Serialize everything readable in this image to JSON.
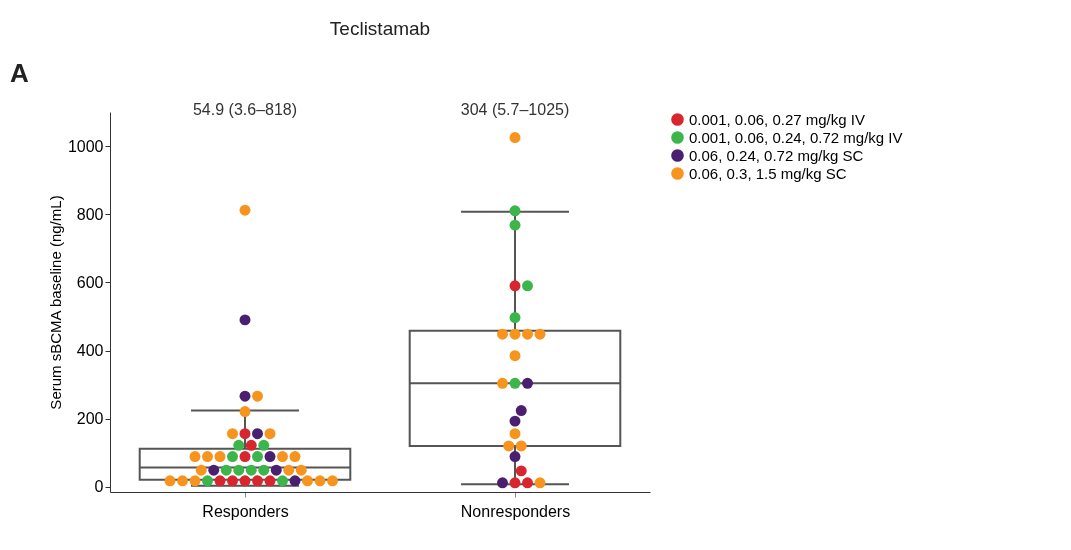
{
  "chart_data": {
    "type": "box",
    "title": "Teclistamab",
    "ylabel": "Serum sBCMA baseline (ng/mL)",
    "categories": [
      "Responders",
      "Nonresponders"
    ],
    "boxes": [
      {
        "low": 3.6,
        "q1": 21,
        "median": 57,
        "q3": 112,
        "high": 224
      },
      {
        "low": 8,
        "q1": 120,
        "median": 304,
        "q3": 458,
        "high": 807
      }
    ],
    "series": [
      {
        "type": "scatter",
        "name": "0.001, 0.06, 0.27 mg/kg IV",
        "color": "#d7262e",
        "x": [
          "Responders",
          "Responders",
          "Responders",
          "Responders",
          "Responders",
          "Responders",
          "Responders",
          "Responders",
          "Nonresponders",
          "Nonresponders",
          "Nonresponders",
          "Nonresponders"
        ],
        "values": [
          156,
          122,
          89,
          18,
          18,
          18,
          18,
          18,
          590,
          47,
          12,
          12
        ]
      },
      {
        "type": "scatter",
        "name": "0.001, 0.06, 0.24, 0.72 mg/kg IV",
        "color": "#3cb54a",
        "x": [
          "Responders",
          "Responders",
          "Responders",
          "Responders",
          "Responders",
          "Responders",
          "Responders",
          "Responders",
          "Responders",
          "Responders",
          "Nonresponders",
          "Nonresponders",
          "Nonresponders",
          "Nonresponders",
          "Nonresponders"
        ],
        "values": [
          122,
          122,
          89,
          89,
          49,
          49,
          49,
          49,
          18,
          18,
          810,
          768,
          590,
          497,
          304
        ]
      },
      {
        "type": "scatter",
        "name": "0.06, 0.24, 0.72 mg/kg SC",
        "color": "#4b1f6f",
        "x": [
          "Responders",
          "Responders",
          "Responders",
          "Responders",
          "Responders",
          "Responders",
          "Responders",
          "Nonresponders",
          "Nonresponders",
          "Nonresponders",
          "Nonresponders",
          "Nonresponders"
        ],
        "values": [
          490,
          266,
          156,
          89,
          49,
          49,
          18,
          304,
          224,
          193,
          89,
          12
        ]
      },
      {
        "type": "scatter",
        "name": "0.06, 0.3, 1.5 mg/kg SC",
        "color": "#f7941d",
        "x": [
          "Responders",
          "Responders",
          "Responders",
          "Responders",
          "Responders",
          "Responders",
          "Responders",
          "Responders",
          "Responders",
          "Responders",
          "Responders",
          "Responders",
          "Responders",
          "Responders",
          "Responders",
          "Responders",
          "Responders",
          "Responders",
          "Responders",
          "Nonresponders",
          "Nonresponders",
          "Nonresponders",
          "Nonresponders",
          "Nonresponders",
          "Nonresponders",
          "Nonresponders",
          "Nonresponders",
          "Nonresponders",
          "Nonresponders",
          "Nonresponders"
        ],
        "values": [
          812,
          266,
          221,
          156,
          156,
          89,
          89,
          89,
          89,
          89,
          49,
          49,
          49,
          18,
          18,
          18,
          18,
          18,
          18,
          1025,
          448,
          448,
          448,
          448,
          385,
          304,
          156,
          120,
          120,
          12
        ]
      }
    ],
    "ylim": [
      -15,
      1100
    ],
    "yticks": [
      0,
      200,
      400,
      600,
      800,
      1000
    ],
    "grid": false,
    "legend": "right",
    "annotations": [
      "A",
      "54.9 (3.6–818)",
      "304 (5.7–1025)"
    ]
  }
}
